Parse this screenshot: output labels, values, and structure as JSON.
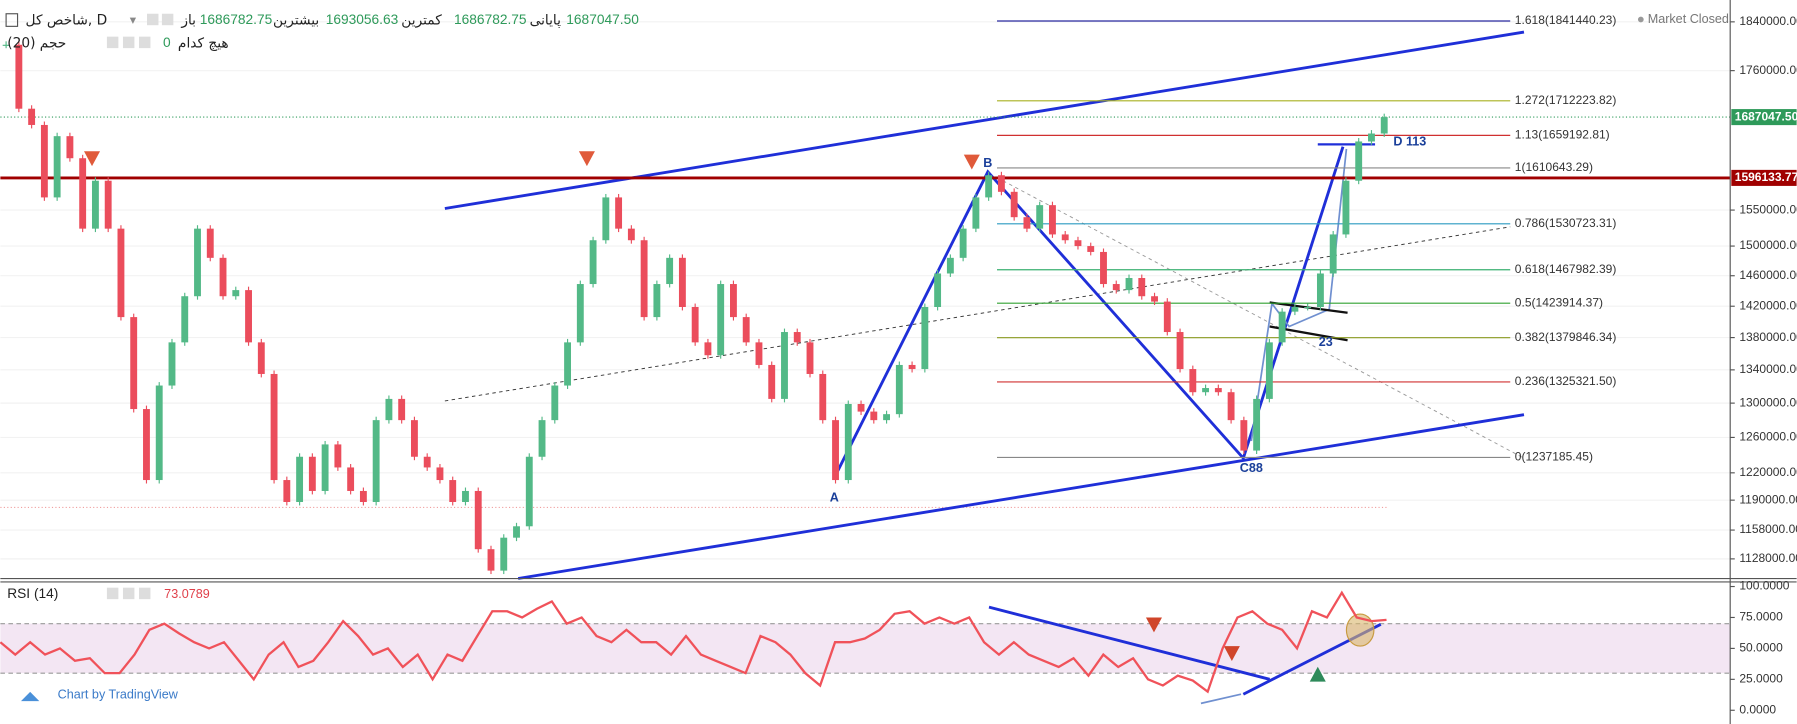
{
  "header": {
    "symbol": "شاخص کل, D",
    "ohlc": [
      {
        "label": "باز",
        "value": "1686782.75"
      },
      {
        "label": "بیشترین",
        "value": "1693056.63"
      },
      {
        "label": "کمترین",
        "value": "1686782.75"
      },
      {
        "label": "پایانی",
        "value": "1687047.50"
      }
    ],
    "volume": "حجم (20)",
    "volume_value": "0",
    "volume_note": "هیچ کدام",
    "market_status": "Market Closed"
  },
  "footer": "Chart by TradingView",
  "chart_data": [
    {
      "type": "candlestick",
      "log": true,
      "color_up": "#53b987",
      "color_down": "#eb4d5c",
      "values": [
        1802000,
        1700000,
        1675000,
        1568000,
        1658000,
        1625000,
        1524000,
        1592000,
        1524000,
        1406000,
        1293000,
        1212000,
        1321000,
        1374000,
        1433000,
        1524000,
        1484000,
        1433000,
        1441000,
        1374000,
        1335000,
        1212000,
        1188000,
        1238000,
        1200000,
        1252000,
        1226000,
        1200000,
        1188000,
        1280000,
        1305000,
        1280000,
        1238000,
        1226000,
        1212000,
        1188000,
        1200000,
        1138000,
        1116000,
        1150000,
        1162000,
        1238000,
        1280000,
        1321000,
        1374000,
        1449000,
        1508000,
        1568000,
        1524000,
        1508000,
        1406000,
        1449000,
        1484000,
        1419000,
        1374000,
        1358000,
        1449000,
        1406000,
        1374000,
        1346000,
        1305000,
        1387000,
        1374000,
        1335000,
        1280000,
        1212000,
        1299000,
        1290000,
        1280000,
        1287000,
        1346000,
        1341000,
        1419000,
        1463000,
        1484000,
        1524000,
        1568000,
        1600000,
        1576000,
        1540000,
        1524000,
        1557000,
        1516000,
        1508000,
        1500000,
        1492000,
        1449000,
        1441000,
        1457000,
        1433000,
        1426000,
        1387000,
        1341000,
        1313000,
        1318000,
        1313000,
        1280000,
        1245000,
        1305000,
        1374000,
        1413000,
        1419000,
        1419000,
        1463000,
        1516000,
        1592000,
        1650000,
        1662000,
        1687047.5
      ],
      "ylim": [
        1108000,
        1877000
      ],
      "yticks": [
        {
          "value": 1840000,
          "label": "1840000.00"
        },
        {
          "value": 1760000,
          "label": "1760000.00"
        },
        {
          "value": 1550000,
          "label": "1550000.00"
        },
        {
          "value": 1500000,
          "label": "1500000.00"
        },
        {
          "value": 1460000,
          "label": "1460000.00"
        },
        {
          "value": 1420000,
          "label": "1420000.00"
        },
        {
          "value": 1380000,
          "label": "1380000.00"
        },
        {
          "value": 1340000,
          "label": "1340000.00"
        },
        {
          "value": 1300000,
          "label": "1300000.00"
        },
        {
          "value": 1260000,
          "label": "1260000.00"
        },
        {
          "value": 1220000,
          "label": "1220000.00"
        },
        {
          "value": 1190000,
          "label": "1190000.00"
        },
        {
          "value": 1158000,
          "label": "1158000.00"
        },
        {
          "value": 1128000,
          "label": "1128000.00"
        }
      ],
      "last_price": {
        "value": 1687047.5,
        "label": "1687047.50",
        "color": "#2e9a5a"
      },
      "hline": {
        "value": 1596133.77,
        "label": "1596133.77",
        "color": "#a00000"
      },
      "fib": [
        {
          "value": 1841440.23,
          "label": "1.618(1841440.23)",
          "color": "#2a2aa0"
        },
        {
          "value": 1712223.82,
          "label": "1.272(1712223.82)",
          "color": "#a8b020"
        },
        {
          "value": 1659192.81,
          "label": "1.13(1659192.81)",
          "color": "#d03030"
        },
        {
          "value": 1610643.29,
          "label": "1(1610643.29)",
          "color": "#888888"
        },
        {
          "value": 1530723.31,
          "label": "0.786(1530723.31)",
          "color": "#2a9ac0"
        },
        {
          "value": 1467982.39,
          "label": "0.618(1467982.39)",
          "color": "#3ab070"
        },
        {
          "value": 1423914.37,
          "label": "0.5(1423914.37)",
          "color": "#30a030"
        },
        {
          "value": 1379846.34,
          "label": "0.382(1379846.34)",
          "color": "#8a9a20"
        },
        {
          "value": 1325321.5,
          "label": "0.236(1325321.50)",
          "color": "#d03030"
        },
        {
          "value": 1237185.45,
          "label": "0(1237185.45)",
          "color": "#888888"
        }
      ],
      "annotations": [
        "A",
        "B",
        "C88",
        "D 113",
        "23"
      ]
    },
    {
      "type": "line",
      "title": "RSI (14)",
      "last": "73.0789",
      "color": "#f0525a",
      "band": [
        30,
        70
      ],
      "ylim": [
        -11.1,
        103.7
      ],
      "yticks": [
        {
          "value": 100,
          "label": "100.0000"
        },
        {
          "value": 75,
          "label": "75.0000"
        },
        {
          "value": 50,
          "label": "50.0000"
        },
        {
          "value": 25,
          "label": "25.0000"
        },
        {
          "value": 0,
          "label": "0.0000"
        }
      ],
      "values": [
        55,
        45,
        55,
        45,
        50,
        40,
        42,
        30,
        30,
        45,
        65,
        70,
        62,
        55,
        50,
        55,
        40,
        25,
        45,
        55,
        35,
        40,
        55,
        72,
        60,
        45,
        50,
        35,
        45,
        25,
        45,
        40,
        60,
        80,
        80,
        75,
        82,
        88,
        70,
        75,
        60,
        55,
        65,
        55,
        55,
        45,
        60,
        45,
        40,
        35,
        30,
        60,
        55,
        45,
        30,
        20,
        55,
        55,
        58,
        65,
        78,
        80,
        70,
        75,
        70,
        75,
        55,
        45,
        55,
        45,
        40,
        35,
        42,
        28,
        45,
        35,
        42,
        25,
        20,
        28,
        24,
        15,
        50,
        75,
        80,
        70,
        65,
        50,
        80,
        75,
        95,
        75,
        72,
        73.0789
      ]
    }
  ]
}
